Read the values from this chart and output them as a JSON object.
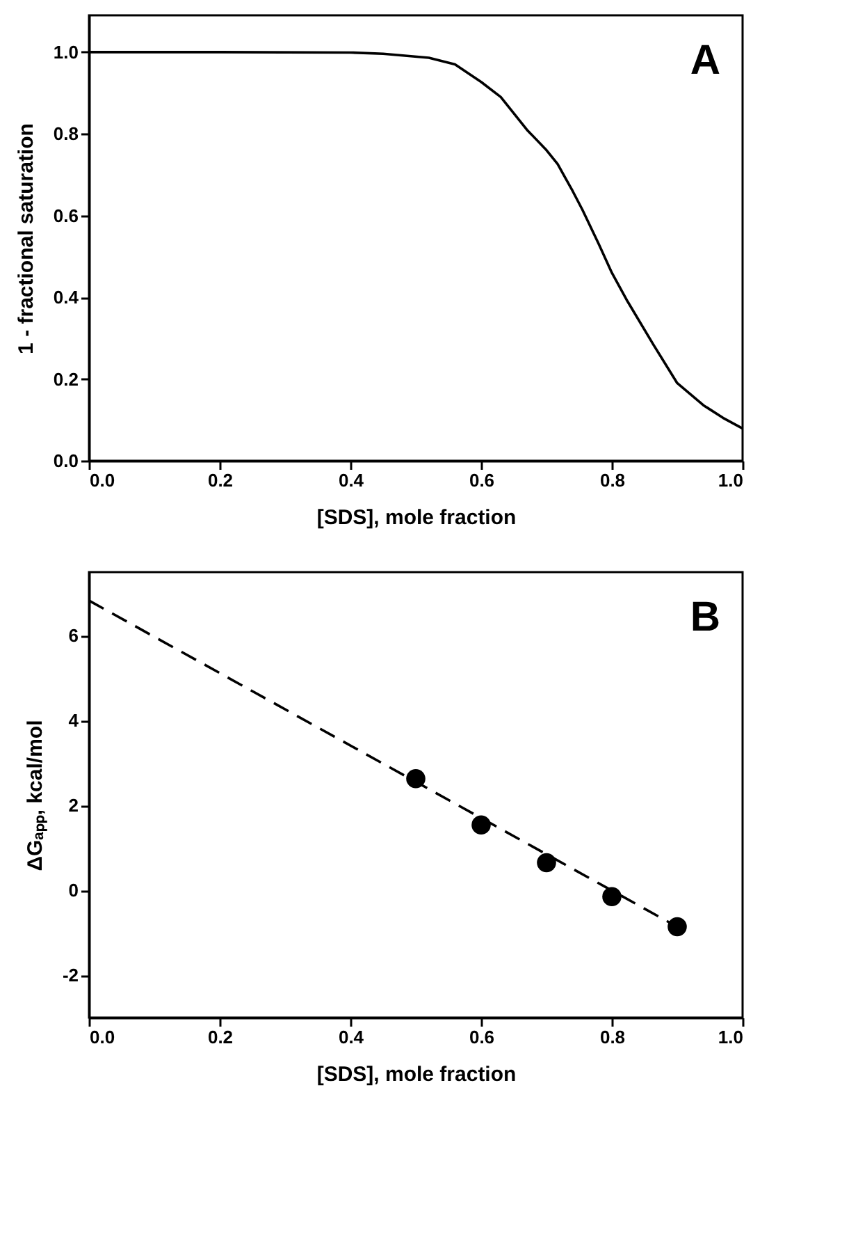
{
  "chart_data": [
    {
      "type": "line",
      "xlabel": "[SDS], mole fraction",
      "ylabel": "1 - fractional saturation",
      "annotations": [
        "A"
      ],
      "grid": false,
      "xlim": [
        0,
        1
      ],
      "ylim": [
        0,
        1.09
      ],
      "xticks": [
        {
          "value": 0,
          "label": "0.0"
        },
        {
          "value": 0.2,
          "label": "0.2"
        },
        {
          "value": 0.4,
          "label": "0.4"
        },
        {
          "value": 0.6,
          "label": "0.6"
        },
        {
          "value": 0.8,
          "label": "0.8"
        },
        {
          "value": 1,
          "label": "1.0"
        }
      ],
      "yticks": [
        {
          "value": 0,
          "label": "0.0"
        },
        {
          "value": 0.2,
          "label": "0.2"
        },
        {
          "value": 0.4,
          "label": "0.4"
        },
        {
          "value": 0.6,
          "label": "0.6"
        },
        {
          "value": 0.8,
          "label": "0.8"
        },
        {
          "value": 1,
          "label": "1.0"
        }
      ],
      "series": [
        {
          "color": "#000000",
          "line_style": "solid",
          "marker": "none",
          "x": [
            0,
            0.2,
            0.4,
            0.45,
            0.52,
            0.56,
            0.6,
            0.63,
            0.67,
            0.7,
            0.717,
            0.74,
            0.755,
            0.78,
            0.8,
            0.824,
            0.864,
            0.9,
            0.94,
            0.97,
            1.0
          ],
          "values": [
            1.0,
            1.0,
            0.999,
            0.996,
            0.986,
            0.97,
            0.927,
            0.89,
            0.81,
            0.76,
            0.726,
            0.66,
            0.614,
            0.53,
            0.46,
            0.39,
            0.283,
            0.19,
            0.136,
            0.105,
            0.079
          ]
        }
      ]
    },
    {
      "type": "scatter",
      "xlabel": "[SDS], mole fraction",
      "ylabel": "ΔGₐₚₚ, kcal/mol",
      "annotations": [
        "B"
      ],
      "grid": false,
      "xlim": [
        0,
        1
      ],
      "ylim": [
        -3,
        7.5
      ],
      "xticks": [
        {
          "value": 0,
          "label": "0.0"
        },
        {
          "value": 0.2,
          "label": "0.2"
        },
        {
          "value": 0.4,
          "label": "0.4"
        },
        {
          "value": 0.6,
          "label": "0.6"
        },
        {
          "value": 0.8,
          "label": "0.8"
        },
        {
          "value": 1,
          "label": "1.0"
        }
      ],
      "yticks": [
        -2,
        0,
        2,
        4,
        6
      ],
      "series": [
        {
          "type": "line",
          "color": "#000000",
          "line_style": "dashed",
          "marker": "none",
          "x": [
            0,
            0.9
          ],
          "values": [
            6.83,
            -0.86
          ]
        },
        {
          "type": "scatter",
          "color": "#000000",
          "marker": "circle",
          "x": [
            0.5,
            0.6,
            0.7,
            0.8,
            0.9
          ],
          "values": [
            2.63,
            1.54,
            0.65,
            -0.15,
            -0.86
          ]
        }
      ]
    }
  ]
}
